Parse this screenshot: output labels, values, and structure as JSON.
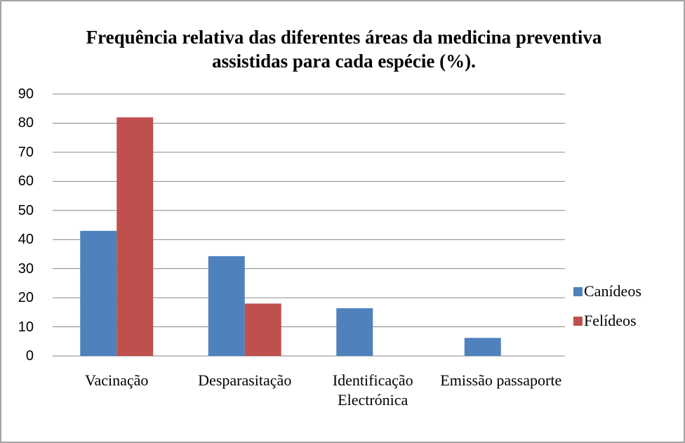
{
  "chart_data": {
    "type": "bar",
    "title": "Frequência relativa das diferentes áreas da medicina preventiva assistidas para cada espécie (%).",
    "categories": [
      "Vacinação",
      "Desparasitação",
      "Identificação Electrónica",
      "Emissão passaporte"
    ],
    "series": [
      {
        "name": "Canídeos",
        "color": "#4f81bd",
        "values": [
          43,
          34.3,
          16.4,
          6.2
        ]
      },
      {
        "name": "Felídeos",
        "color": "#c0504d",
        "values": [
          82,
          18,
          0,
          0
        ]
      }
    ],
    "ylim": [
      0,
      90
    ],
    "yticks": [
      0,
      10,
      20,
      30,
      40,
      50,
      60,
      70,
      80,
      90
    ],
    "grid": true,
    "legend": "right"
  }
}
